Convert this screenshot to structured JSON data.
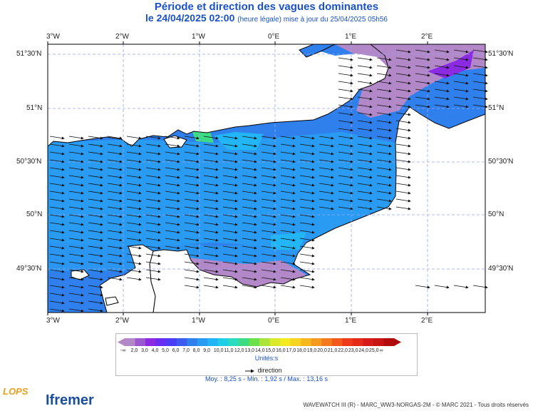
{
  "title": "Période et direction des vagues dominantes",
  "subtitle_date": "le 24/04/2025 02:00",
  "subtitle_note": "(heure légale) mise à jour du 25/04/2025 05h56",
  "lon_labels": [
    "3°W",
    "2°W",
    "1°W",
    "0°E",
    "1°E",
    "2°E"
  ],
  "lat_labels": [
    "51°30'N",
    "51°N",
    "50°30'N",
    "50°N",
    "49°30'N"
  ],
  "legend": {
    "colors": [
      "#b388c8",
      "#9b59d0",
      "#8a2be2",
      "#6a2cf0",
      "#4b3cf5",
      "#3c5cf0",
      "#2f80ec",
      "#2a9bf2",
      "#22b6f6",
      "#20cfe6",
      "#2bdcc0",
      "#3ddc84",
      "#6ae04a",
      "#a8e43a",
      "#d8ea2a",
      "#f4ea22",
      "#f6d420",
      "#f6b820",
      "#f59a20",
      "#f47a1e",
      "#f25a1c",
      "#ee3a1a",
      "#e62a1a",
      "#d61a1a",
      "#c81414",
      "#b00c0c"
    ],
    "labels": [
      "-∞",
      "2,0",
      "3,0",
      "4,0",
      "5,0",
      "6,0",
      "7,0",
      "8,0",
      "9,0",
      "10,0",
      "11,0",
      "12,0",
      "13,0",
      "14,0",
      "15,0",
      "16,0",
      "17,0",
      "18,0",
      "19,0",
      "20,0",
      "21,0",
      "22,0",
      "23,0",
      "24,0",
      "25,0",
      "∞"
    ],
    "unit": "Unités",
    "direction_label": "direction"
  },
  "stats": "Moy. : 8,25 s   -   Min. : 1,92 s / Max. : 13,16 s",
  "credit": "WAVEWATCH III (R) - MARC_WW3-NORGAS-2M - © MARC 2021 - Tous droits réservés",
  "logos": {
    "lops": "LOPS",
    "ifremer": "Ifremer"
  }
}
